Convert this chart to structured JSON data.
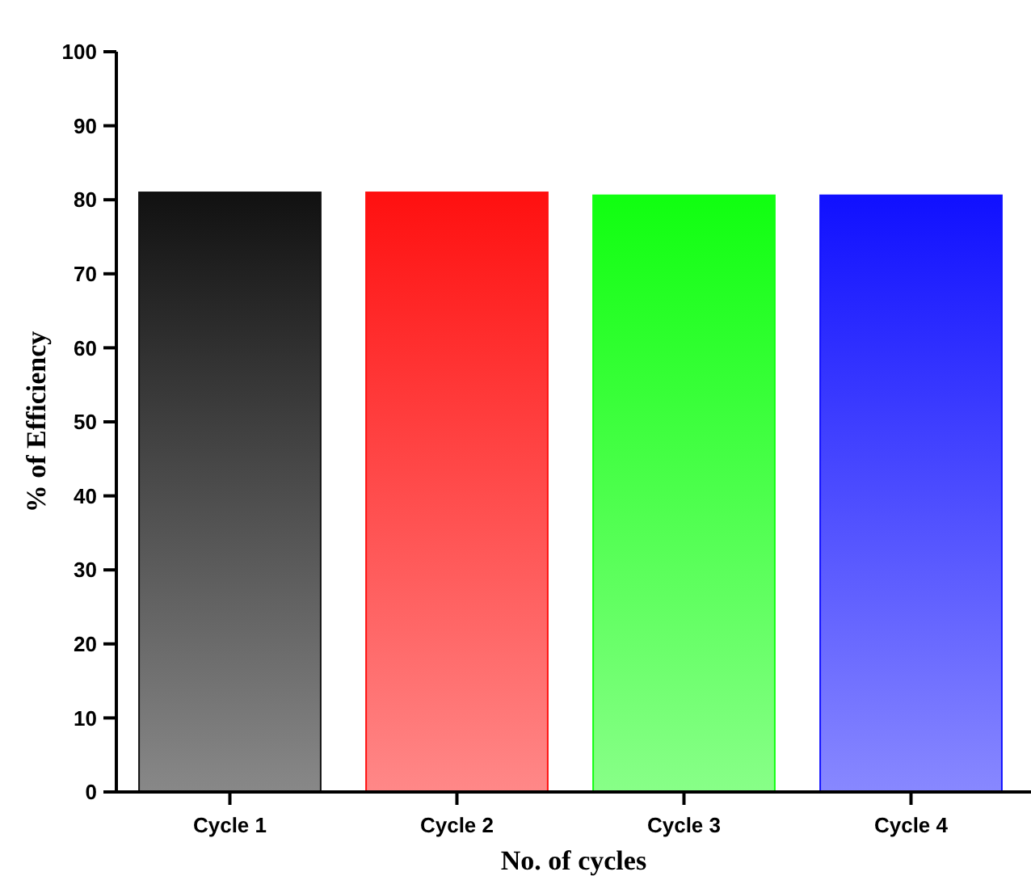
{
  "chart_data": {
    "type": "bar",
    "xlabel": "No. of cycles",
    "ylabel": "% of Efficiency",
    "categories": [
      "Cycle 1",
      "Cycle 2",
      "Cycle 3",
      "Cycle 4"
    ],
    "values": [
      81.0,
      81.0,
      80.6,
      80.6
    ],
    "colors": [
      "#111111",
      "#ff1010",
      "#10ff10",
      "#1010ff"
    ],
    "ylim": [
      0,
      100
    ],
    "yticks": [
      0,
      10,
      20,
      30,
      40,
      50,
      60,
      70,
      80,
      90,
      100
    ],
    "grid": false
  }
}
